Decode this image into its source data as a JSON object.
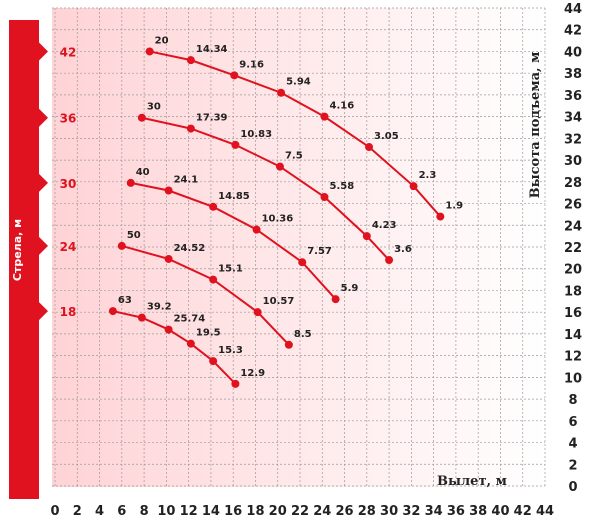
{
  "chart_data": {
    "type": "line",
    "xlabel": "Вылет, м",
    "ylabel": "Высота подъема, м",
    "boom_title": "Стрела, м",
    "xlim": [
      0,
      44
    ],
    "ylim": [
      0,
      44
    ],
    "xticks": [
      0,
      2,
      4,
      6,
      8,
      10,
      12,
      14,
      16,
      18,
      20,
      22,
      24,
      26,
      28,
      30,
      32,
      34,
      36,
      38,
      40,
      42,
      44
    ],
    "yticks": [
      0,
      2,
      4,
      6,
      8,
      10,
      12,
      14,
      16,
      18,
      20,
      22,
      24,
      26,
      28,
      30,
      32,
      34,
      36,
      38,
      40,
      42,
      44
    ],
    "grid": true,
    "line_color": "#e0121f",
    "boom_marker_color": "#e0121f",
    "series": [
      {
        "name": "42",
        "points": [
          {
            "x": 8.5,
            "y": 40.0,
            "label": "20"
          },
          {
            "x": 12.2,
            "y": 39.2,
            "label": "14.34"
          },
          {
            "x": 16.1,
            "y": 37.8,
            "label": "9.16"
          },
          {
            "x": 20.3,
            "y": 36.2,
            "label": "5.94"
          },
          {
            "x": 24.2,
            "y": 34.0,
            "label": "4.16"
          },
          {
            "x": 28.2,
            "y": 31.2,
            "label": "3.05"
          },
          {
            "x": 32.2,
            "y": 27.6,
            "label": "2.3"
          },
          {
            "x": 34.6,
            "y": 24.8,
            "label": "1.9"
          }
        ]
      },
      {
        "name": "36",
        "points": [
          {
            "x": 7.8,
            "y": 33.9,
            "label": "30"
          },
          {
            "x": 12.2,
            "y": 32.9,
            "label": "17.39"
          },
          {
            "x": 16.2,
            "y": 31.4,
            "label": "10.83"
          },
          {
            "x": 20.2,
            "y": 29.4,
            "label": "7.5"
          },
          {
            "x": 24.2,
            "y": 26.6,
            "label": "5.58"
          },
          {
            "x": 28.0,
            "y": 23.0,
            "label": "4.23"
          },
          {
            "x": 30.0,
            "y": 20.8,
            "label": "3.6"
          }
        ]
      },
      {
        "name": "30",
        "points": [
          {
            "x": 6.8,
            "y": 27.9,
            "label": "40"
          },
          {
            "x": 10.2,
            "y": 27.2,
            "label": "24.1"
          },
          {
            "x": 14.2,
            "y": 25.7,
            "label": "14.85"
          },
          {
            "x": 18.1,
            "y": 23.6,
            "label": "10.36"
          },
          {
            "x": 22.2,
            "y": 20.6,
            "label": "7.57"
          },
          {
            "x": 25.2,
            "y": 17.2,
            "label": "5.9"
          }
        ]
      },
      {
        "name": "24",
        "points": [
          {
            "x": 6.0,
            "y": 22.1,
            "label": "50"
          },
          {
            "x": 10.2,
            "y": 20.9,
            "label": "24.52"
          },
          {
            "x": 14.2,
            "y": 19.0,
            "label": "15.1"
          },
          {
            "x": 18.2,
            "y": 16.0,
            "label": "10.57"
          },
          {
            "x": 21.0,
            "y": 13.0,
            "label": "8.5"
          }
        ]
      },
      {
        "name": "18",
        "points": [
          {
            "x": 5.2,
            "y": 16.1,
            "label": "63"
          },
          {
            "x": 7.8,
            "y": 15.5,
            "label": "39.2"
          },
          {
            "x": 10.2,
            "y": 14.4,
            "label": "25.74"
          },
          {
            "x": 12.2,
            "y": 13.1,
            "label": "19.5"
          },
          {
            "x": 14.2,
            "y": 11.5,
            "label": "15.3"
          },
          {
            "x": 16.2,
            "y": 9.4,
            "label": "12.9"
          }
        ]
      }
    ]
  }
}
